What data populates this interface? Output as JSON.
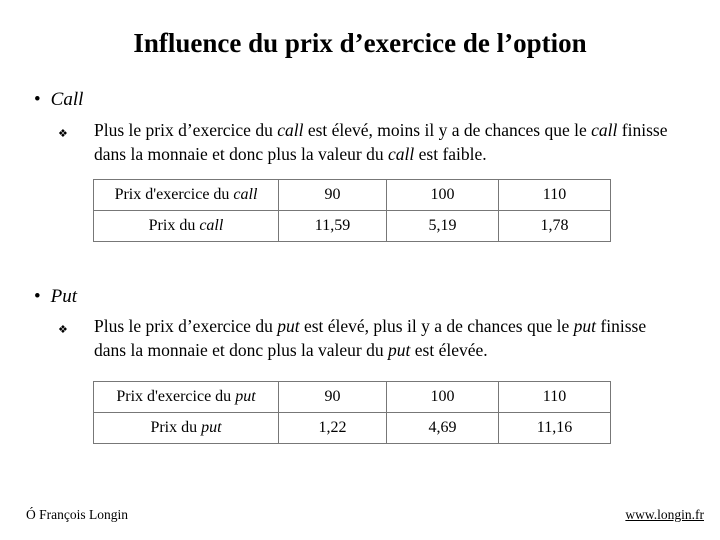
{
  "title": "Influence du prix d’exercice de l’option",
  "sections": [
    {
      "heading": "Call",
      "text_before": "Plus le prix d’exercice du ",
      "em1": "call",
      "text_mid": " est élevé, moins il y a de chances que le ",
      "em2": "call",
      "text_mid2": " finisse dans la monnaie et donc plus la valeur du ",
      "em3": "call",
      "text_after": " est faible.",
      "table": {
        "row1_label": "Prix d'exercice du ",
        "row1_label_em": "call",
        "row1_values": [
          "90",
          "100",
          "110"
        ],
        "row2_label": "Prix du ",
        "row2_label_em": "call",
        "row2_values": [
          "11,59",
          "5,19",
          "1,78"
        ]
      }
    },
    {
      "heading": "Put",
      "text_before": "Plus le prix d’exercice du ",
      "em1": "put",
      "text_mid": " est élevé, plus il y a de chances que le ",
      "em2": "put",
      "text_mid2": " finisse dans la monnaie et donc plus la valeur du ",
      "em3": "put",
      "text_after": " est élevée.",
      "table": {
        "row1_label": "Prix d'exercice du ",
        "row1_label_em": "put",
        "row1_values": [
          "90",
          "100",
          "110"
        ],
        "row2_label": "Prix du ",
        "row2_label_em": "put",
        "row2_values": [
          "1,22",
          "4,69",
          "11,16"
        ]
      }
    }
  ],
  "footer": {
    "author": "François Longin",
    "author_symbol": "Ó",
    "website": "www.longin.fr"
  }
}
